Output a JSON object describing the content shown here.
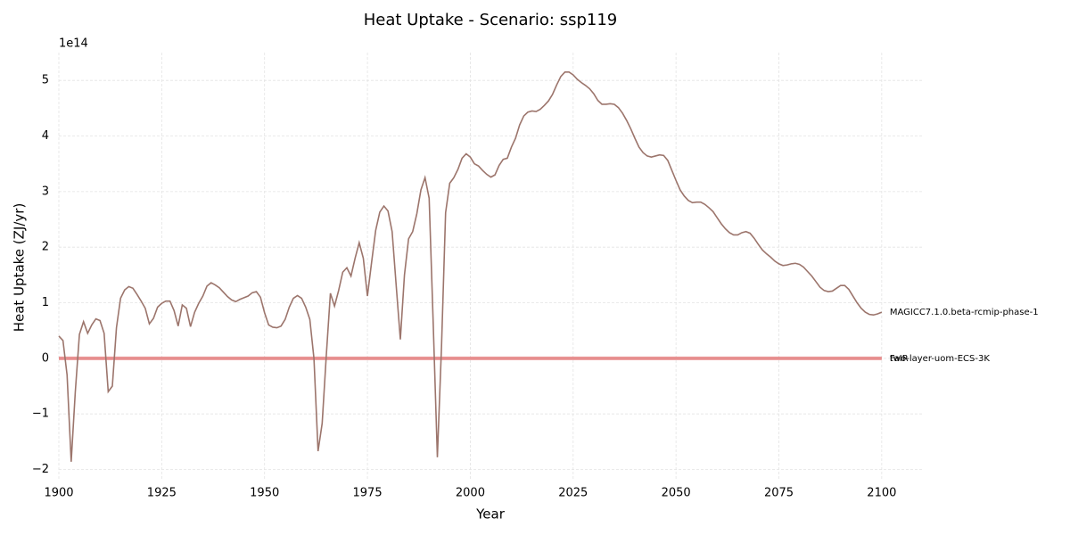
{
  "chart_data": {
    "type": "line",
    "title": "Heat Uptake - Scenario: ssp119",
    "x_label": "Year",
    "y_label": "Heat Uptake (ZJ/yr)",
    "y_offset_label": "1e14",
    "grid": true,
    "xlim": [
      1900,
      2110
    ],
    "ylim": [
      -220000000000000.0,
      550000000000000.0
    ],
    "xticks": [
      1900,
      1925,
      1950,
      1975,
      2000,
      2025,
      2050,
      2075,
      2100
    ],
    "yticks": [
      {
        "value": -200000000000000.0,
        "label": "−2"
      },
      {
        "value": -100000000000000.0,
        "label": "−1"
      },
      0,
      {
        "value": 100000000000000.0,
        "label": "1"
      },
      {
        "value": 200000000000000.0,
        "label": "2"
      },
      {
        "value": 300000000000000.0,
        "label": "3"
      },
      {
        "value": 400000000000000.0,
        "label": "4"
      },
      {
        "value": 500000000000000.0,
        "label": "5"
      }
    ],
    "x": [
      1900,
      1901,
      1902,
      1903,
      1904,
      1905,
      1906,
      1907,
      1908,
      1909,
      1910,
      1911,
      1912,
      1913,
      1914,
      1915,
      1916,
      1917,
      1918,
      1919,
      1920,
      1921,
      1922,
      1923,
      1924,
      1925,
      1926,
      1927,
      1928,
      1929,
      1930,
      1931,
      1932,
      1933,
      1934,
      1935,
      1936,
      1937,
      1938,
      1939,
      1940,
      1941,
      1942,
      1943,
      1944,
      1945,
      1946,
      1947,
      1948,
      1949,
      1950,
      1951,
      1952,
      1953,
      1954,
      1955,
      1956,
      1957,
      1958,
      1959,
      1960,
      1961,
      1962,
      1963,
      1964,
      1965,
      1966,
      1967,
      1968,
      1969,
      1970,
      1971,
      1972,
      1973,
      1974,
      1975,
      1976,
      1977,
      1978,
      1979,
      1980,
      1981,
      1982,
      1983,
      1984,
      1985,
      1986,
      1987,
      1988,
      1989,
      1990,
      1991,
      1992,
      1993,
      1994,
      1995,
      1996,
      1997,
      1998,
      1999,
      2000,
      2001,
      2002,
      2003,
      2004,
      2005,
      2006,
      2007,
      2008,
      2009,
      2010,
      2011,
      2012,
      2013,
      2014,
      2015,
      2016,
      2017,
      2018,
      2019,
      2020,
      2021,
      2022,
      2023,
      2024,
      2025,
      2026,
      2027,
      2028,
      2029,
      2030,
      2031,
      2032,
      2033,
      2034,
      2035,
      2036,
      2037,
      2038,
      2039,
      2040,
      2041,
      2042,
      2043,
      2044,
      2045,
      2046,
      2047,
      2048,
      2049,
      2050,
      2051,
      2052,
      2053,
      2054,
      2055,
      2056,
      2057,
      2058,
      2059,
      2060,
      2061,
      2062,
      2063,
      2064,
      2065,
      2066,
      2067,
      2068,
      2069,
      2070,
      2071,
      2072,
      2073,
      2074,
      2075,
      2076,
      2077,
      2078,
      2079,
      2080,
      2081,
      2082,
      2083,
      2084,
      2085,
      2086,
      2087,
      2088,
      2089,
      2090,
      2091,
      2092,
      2093,
      2094,
      2095,
      2096,
      2097,
      2098,
      2099,
      2100
    ],
    "series": [
      {
        "name": "MAGICC7.1.0.beta-rcmip-phase-1",
        "color": "#9c756c",
        "values": [
          40000000000000.0,
          32000000000000.0,
          -30000000000000.0,
          -186000000000000.0,
          -60000000000000.0,
          43000000000000.0,
          66000000000000.0,
          45000000000000.0,
          60000000000000.0,
          71000000000000.0,
          68000000000000.0,
          45000000000000.0,
          -60000000000000.0,
          -50000000000000.0,
          55000000000000.0,
          108000000000000.0,
          123000000000000.0,
          129000000000000.0,
          126000000000000.0,
          115000000000000.0,
          103000000000000.0,
          90000000000000.0,
          62000000000000.0,
          72000000000000.0,
          92000000000000.0,
          99000000000000.0,
          103000000000000.0,
          103000000000000.0,
          86000000000000.0,
          58000000000000.0,
          96000000000000.0,
          90000000000000.0,
          57000000000000.0,
          83000000000000.0,
          99000000000000.0,
          112000000000000.0,
          130000000000000.0,
          136000000000000.0,
          132000000000000.0,
          127000000000000.0,
          119000000000000.0,
          111000000000000.0,
          105000000000000.0,
          102000000000000.0,
          106000000000000.0,
          109000000000000.0,
          112000000000000.0,
          118000000000000.0,
          120000000000000.0,
          110000000000000.0,
          82000000000000.0,
          60000000000000.0,
          56000000000000.0,
          55000000000000.0,
          58000000000000.0,
          70000000000000.0,
          92000000000000.0,
          108000000000000.0,
          113000000000000.0,
          108000000000000.0,
          92000000000000.0,
          70000000000000.0,
          0.0,
          -167000000000000.0,
          -117000000000000.0,
          5000000000000.0,
          117000000000000.0,
          94000000000000.0,
          122000000000000.0,
          155000000000000.0,
          163000000000000.0,
          148000000000000.0,
          180000000000000.0,
          208000000000000.0,
          180000000000000.0,
          112000000000000.0,
          172000000000000.0,
          230000000000000.0,
          263000000000000.0,
          274000000000000.0,
          265000000000000.0,
          228000000000000.0,
          130000000000000.0,
          34000000000000.0,
          150000000000000.0,
          215000000000000.0,
          228000000000000.0,
          260000000000000.0,
          303000000000000.0,
          325000000000000.0,
          288000000000000.0,
          60000000000000.0,
          -178000000000000.0,
          20000000000000.0,
          262000000000000.0,
          315000000000000.0,
          325000000000000.0,
          340000000000000.0,
          360000000000000.0,
          368000000000000.0,
          362000000000000.0,
          350000000000000.0,
          346000000000000.0,
          338000000000000.0,
          331000000000000.0,
          326000000000000.0,
          330000000000000.0,
          347000000000000.0,
          358000000000000.0,
          360000000000000.0,
          380000000000000.0,
          396000000000000.0,
          420000000000000.0,
          436000000000000.0,
          443000000000000.0,
          445000000000000.0,
          444000000000000.0,
          448000000000000.0,
          455000000000000.0,
          463000000000000.0,
          475000000000000.0,
          492000000000000.0,
          507000000000000.0,
          515000000000000.0,
          515000000000000.0,
          510000000000000.0,
          502000000000000.0,
          496000000000000.0,
          491000000000000.0,
          485000000000000.0,
          476000000000000.0,
          464000000000000.0,
          457000000000000.0,
          457000000000000.0,
          458000000000000.0,
          457000000000000.0,
          451000000000000.0,
          441000000000000.0,
          428000000000000.0,
          413000000000000.0,
          396000000000000.0,
          380000000000000.0,
          370000000000000.0,
          364000000000000.0,
          362000000000000.0,
          364000000000000.0,
          366000000000000.0,
          365000000000000.0,
          356000000000000.0,
          338000000000000.0,
          320000000000000.0,
          303000000000000.0,
          292000000000000.0,
          284000000000000.0,
          280000000000000.0,
          281000000000000.0,
          281000000000000.0,
          277000000000000.0,
          271000000000000.0,
          264000000000000.0,
          253000000000000.0,
          242000000000000.0,
          233000000000000.0,
          226000000000000.0,
          222000000000000.0,
          222000000000000.0,
          226000000000000.0,
          228000000000000.0,
          225000000000000.0,
          216000000000000.0,
          205000000000000.0,
          195000000000000.0,
          188000000000000.0,
          182000000000000.0,
          175000000000000.0,
          170000000000000.0,
          167000000000000.0,
          168000000000000.0,
          170000000000000.0,
          171000000000000.0,
          169000000000000.0,
          164000000000000.0,
          156000000000000.0,
          148000000000000.0,
          138000000000000.0,
          128000000000000.0,
          122000000000000.0,
          120000000000000.0,
          121000000000000.0,
          126000000000000.0,
          131000000000000.0,
          131000000000000.0,
          124000000000000.0,
          112000000000000.0,
          100000000000000.0,
          90000000000000.0,
          83000000000000.0,
          79000000000000.0,
          78000000000000.0,
          80000000000000.0,
          83000000000000.0
        ]
      },
      {
        "name": "FaIR",
        "color": "#e88585",
        "x": [
          1900,
          2100
        ],
        "values": [
          0,
          0
        ]
      },
      {
        "name": "two-layer-uom-ECS-3K",
        "color": "#c8a0a0",
        "x": [
          1900,
          2100
        ],
        "values": [
          0,
          0
        ]
      }
    ]
  }
}
